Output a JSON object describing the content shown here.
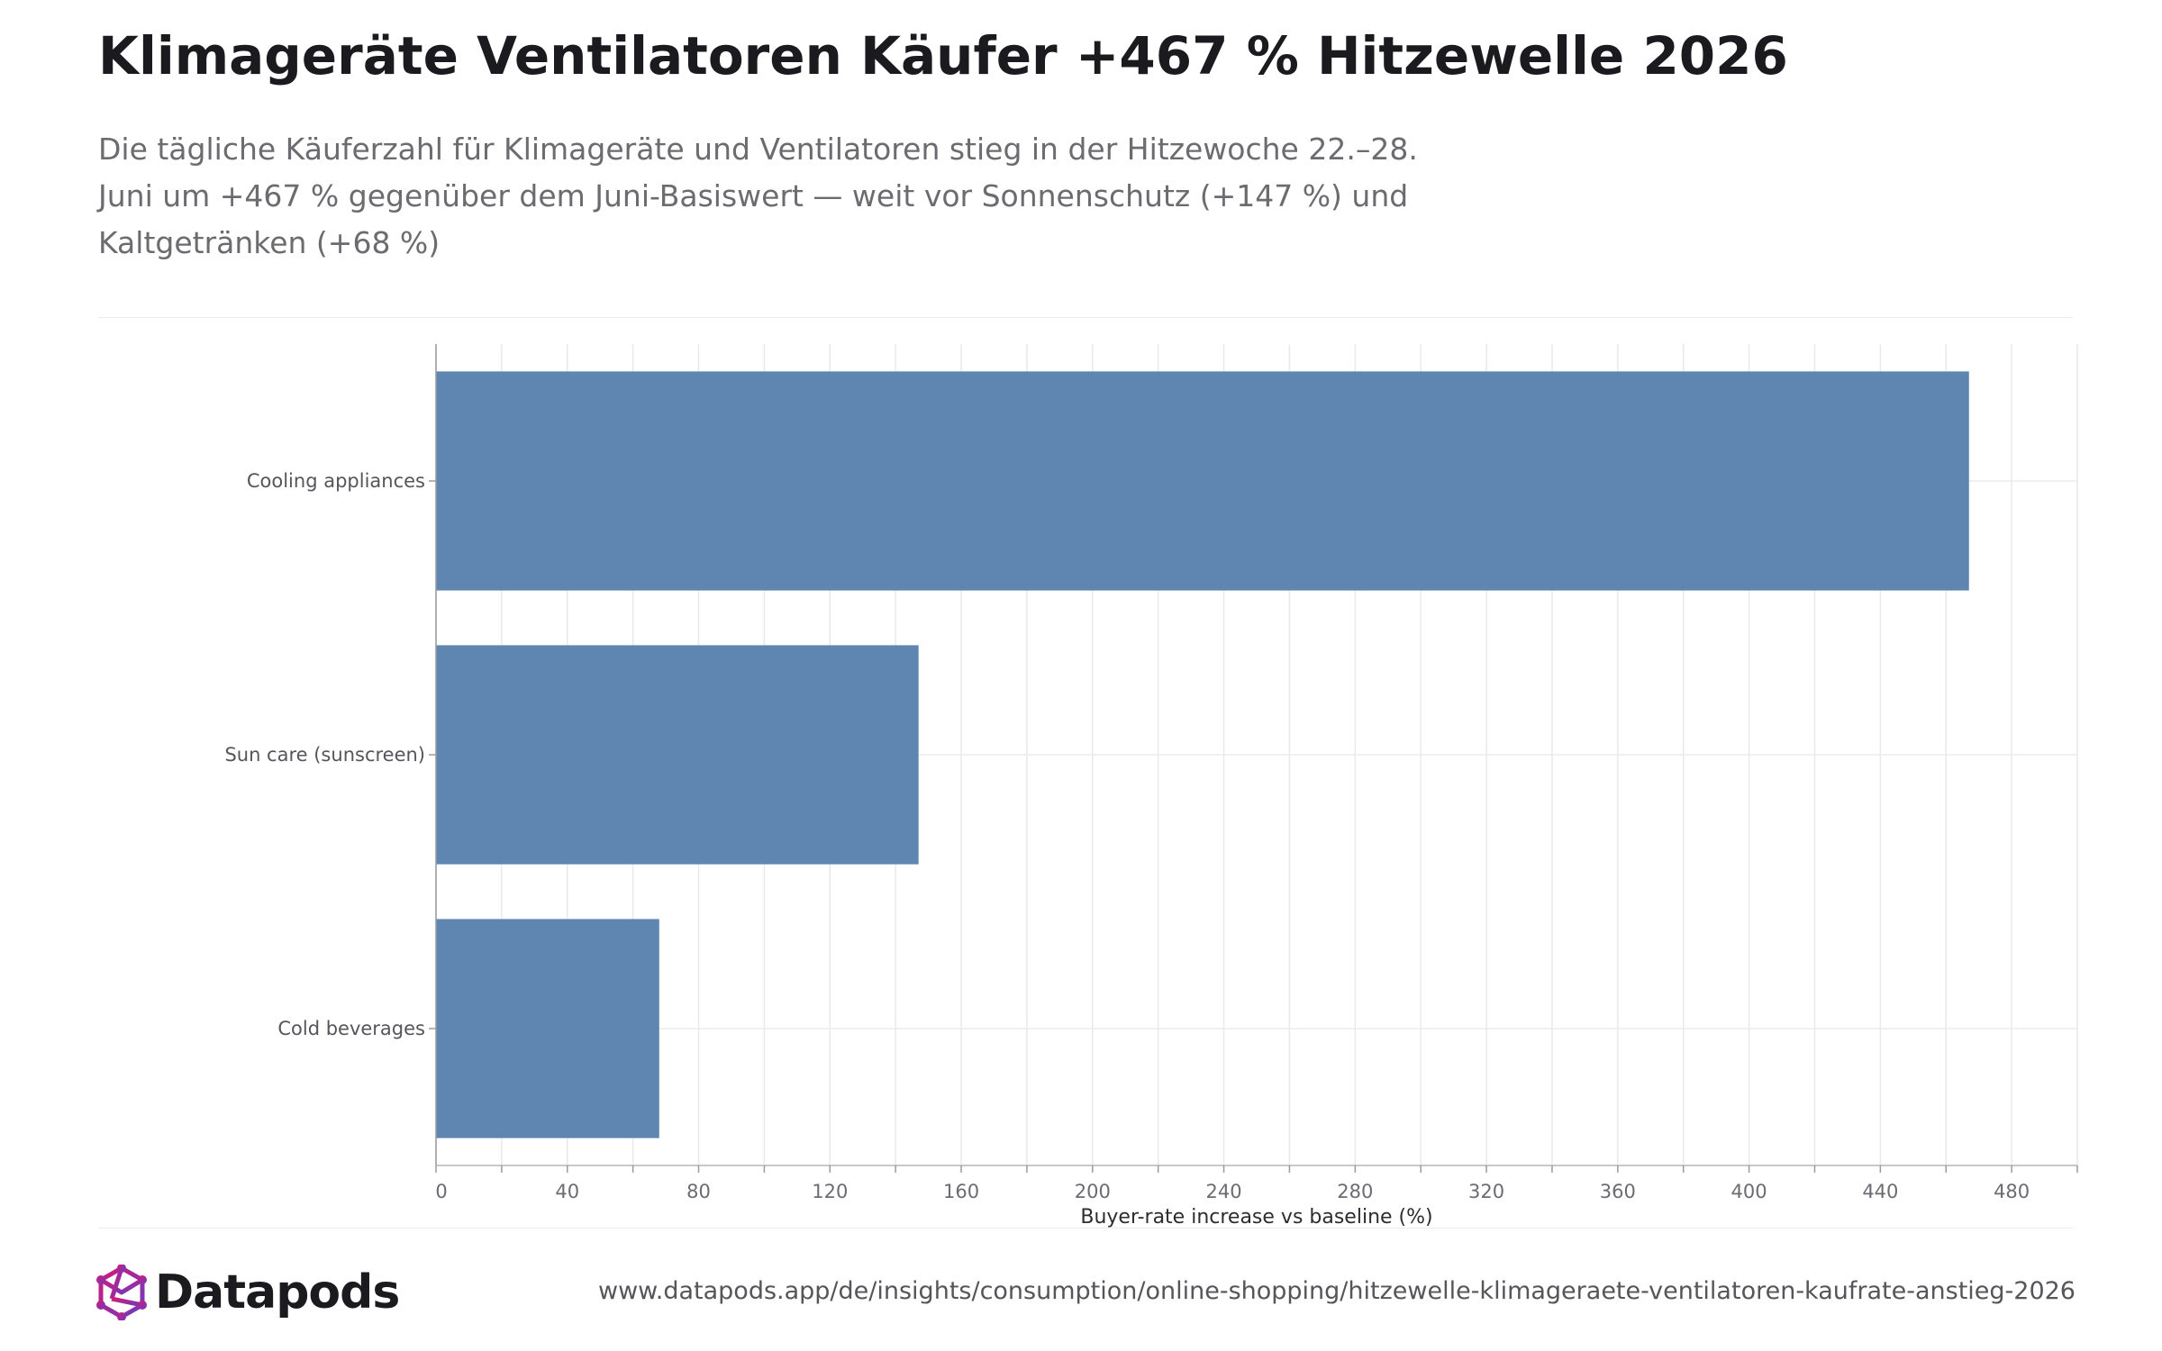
{
  "header": {
    "title": "Klimageräte Ventilatoren Käufer +467 % Hitzewelle 2026",
    "subtitle": "Die tägliche Käuferzahl für Klimageräte und Ventilatoren stieg in der Hitzewoche 22.–28. Juni um +467 % gegenüber dem Juni-Basiswert — weit vor Sonnenschutz (+147 %) und Kaltgetränken (+68 %)"
  },
  "chart_data": {
    "type": "bar",
    "orientation": "horizontal",
    "categories": [
      "Cooling appliances",
      "Sun care (sunscreen)",
      "Cold beverages"
    ],
    "values": [
      467,
      147,
      68
    ],
    "xlabel": "Buyer-rate increase vs baseline (%)",
    "ylabel": "",
    "xlim": [
      0,
      500
    ],
    "xticks": [
      0,
      40,
      80,
      120,
      160,
      200,
      240,
      280,
      320,
      360,
      400,
      440,
      480
    ],
    "grid": true,
    "bar_color": "#5f86b0"
  },
  "footer": {
    "brand": "Datapods",
    "logo_icon": "datapods-logo-icon",
    "source_url": "www.datapods.app/de/insights/consumption/online-shopping/hitzewelle-klimageraete-ventilatoren-kaufrate-anstieg-2026",
    "logo_colors": [
      "#c2187d",
      "#7b3fb8"
    ]
  }
}
